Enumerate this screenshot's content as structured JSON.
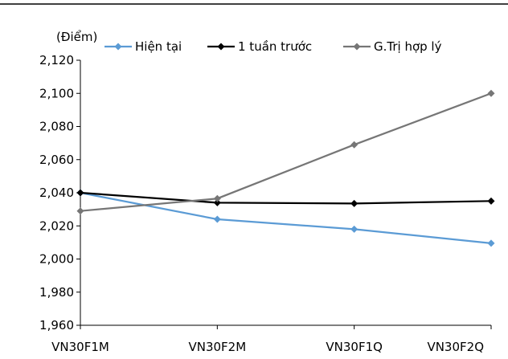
{
  "chart_data": {
    "type": "line",
    "ylabel": "(Điểm)",
    "categories": [
      "VN30F1M",
      "VN30F2M",
      "VN30F1Q",
      "VN30F2Q"
    ],
    "ylim": [
      1960,
      2120
    ],
    "yticks": [
      "1,960",
      "1,980",
      "2,000",
      "2,020",
      "2,040",
      "2,060",
      "2,080",
      "2,100",
      "2,120"
    ],
    "grid": false,
    "legend_position": "top",
    "series": [
      {
        "name": "Hiện tại",
        "color": "#5B9BD5",
        "marker": "diamond",
        "values": [
          2040,
          2024,
          2018,
          2009.5
        ]
      },
      {
        "name": "1 tuần trước",
        "color": "#000000",
        "marker": "diamond",
        "values": [
          2040,
          2034,
          2033.5,
          2035
        ]
      },
      {
        "name": "G.Trị hợp lý",
        "color": "#767676",
        "marker": "diamond",
        "values": [
          2029,
          2036.5,
          2069,
          2100
        ]
      }
    ]
  }
}
